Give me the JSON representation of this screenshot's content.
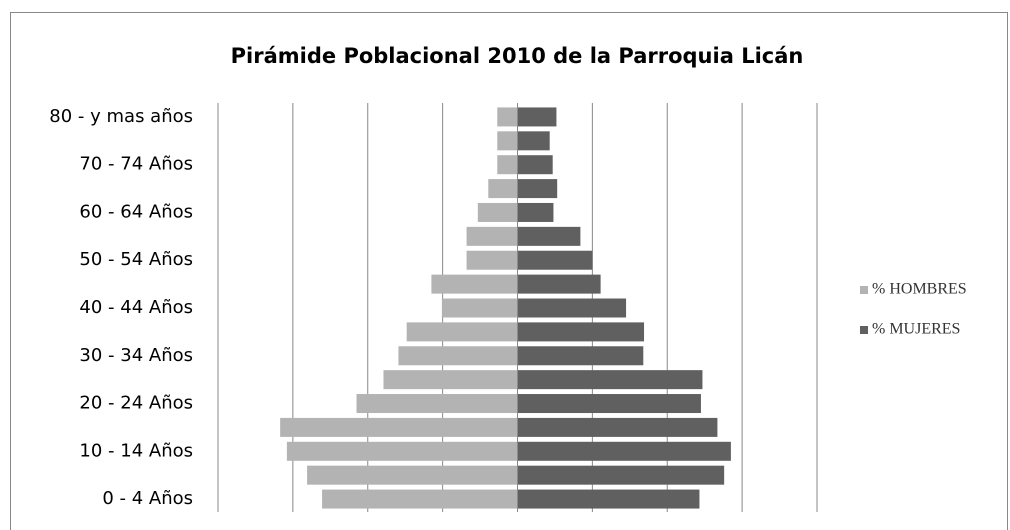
{
  "chart_data": {
    "type": "pyramid",
    "title": "Pirámide Poblacional 2010 de la Parroquia Licán",
    "categories": [
      "80 - y mas años",
      null,
      "70 - 74 Años",
      null,
      "60 - 64 Años",
      null,
      "50 - 54 Años",
      null,
      "40 - 44 Años",
      null,
      "30 - 34 Años",
      null,
      "20 - 24 Años",
      null,
      "10 - 14 Años",
      null,
      "0 - 4 Años"
    ],
    "series": [
      {
        "name": "% HOMBRES",
        "color": "#b3b3b3",
        "side": "left",
        "values": [
          0.27,
          0.27,
          0.27,
          0.39,
          0.53,
          0.68,
          0.68,
          1.15,
          1.01,
          1.48,
          1.59,
          1.79,
          2.15,
          3.17,
          3.08,
          2.81,
          2.61
        ]
      },
      {
        "name": "% MUJERES",
        "color": "#606060",
        "side": "right",
        "values": [
          0.52,
          0.43,
          0.47,
          0.53,
          0.48,
          0.84,
          1.0,
          1.11,
          1.45,
          1.69,
          1.68,
          2.47,
          2.45,
          2.67,
          2.85,
          2.76,
          2.43
        ]
      }
    ],
    "xlim": [
      -4,
      4
    ],
    "xticks": [
      -4,
      -3,
      -2,
      -1,
      0,
      1,
      2,
      3,
      4
    ],
    "grid": true,
    "legend": "right"
  }
}
